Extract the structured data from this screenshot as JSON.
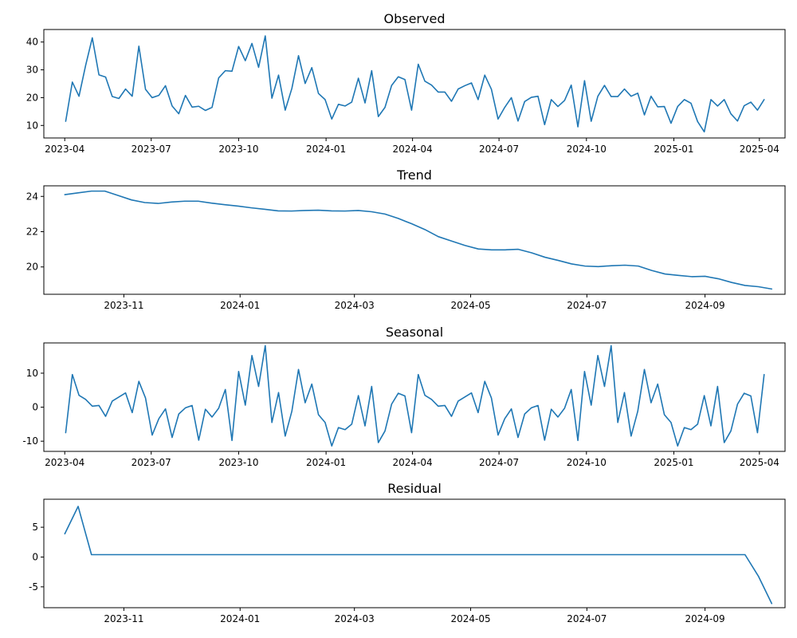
{
  "chart_data": [
    {
      "type": "line",
      "title": "Observed",
      "x_unit": "date",
      "xlim": [
        "2023-03-10",
        "2025-04-28"
      ],
      "ylim": [
        5.5,
        44.5
      ],
      "xticks": [
        {
          "date": "2023-04-01",
          "label": "2023-04"
        },
        {
          "date": "2023-07-01",
          "label": "2023-07"
        },
        {
          "date": "2023-10-01",
          "label": "2023-10"
        },
        {
          "date": "2024-01-01",
          "label": "2024-01"
        },
        {
          "date": "2024-04-01",
          "label": "2024-04"
        },
        {
          "date": "2024-07-01",
          "label": "2024-07"
        },
        {
          "date": "2024-10-01",
          "label": "2024-10"
        },
        {
          "date": "2025-01-01",
          "label": "2025-01"
        },
        {
          "date": "2025-04-01",
          "label": "2025-04"
        }
      ],
      "yticks": [
        10,
        20,
        30,
        40
      ],
      "series": [
        {
          "color": "#1f77b4",
          "x_start": "2023-04-02",
          "x_step_days": 7,
          "values": [
            11.5,
            25.6,
            20.5,
            31.6,
            41.5,
            28.2,
            27.4,
            20.4,
            19.7,
            23.1,
            20.5,
            38.5,
            23.0,
            20.0,
            20.8,
            24.3,
            17.0,
            14.2,
            20.8,
            16.6,
            16.9,
            15.4,
            16.5,
            27.1,
            29.7,
            29.5,
            38.4,
            33.3,
            39.5,
            30.9,
            42.2,
            19.8,
            28.1,
            15.5,
            23.3,
            35.1,
            25.1,
            30.8,
            21.5,
            19.3,
            12.3,
            17.6,
            17.0,
            18.4,
            27.0,
            18.1,
            29.7,
            13.2,
            16.5,
            24.4,
            27.5,
            26.5,
            15.5,
            32.0,
            25.9,
            24.5,
            22.0,
            22.0,
            18.7,
            23.1,
            24.3,
            25.3,
            19.3,
            28.1,
            23.0,
            12.3,
            16.5,
            20.0,
            11.6,
            18.6,
            20.1,
            20.5,
            10.3,
            19.3,
            16.8,
            19.0,
            24.5,
            9.5,
            26.1,
            11.5,
            20.5,
            24.4,
            20.4,
            20.4,
            23.1,
            20.5,
            21.6,
            13.8,
            20.5,
            16.7,
            16.8,
            10.8,
            16.8,
            19.3,
            18.0,
            11.4,
            7.7,
            19.3,
            17.0,
            19.3,
            14.2,
            11.6,
            17.1,
            18.4,
            15.5,
            19.3
          ]
        }
      ]
    },
    {
      "type": "line",
      "title": "Trend",
      "x_unit": "date",
      "xlim": [
        "2023-09-20",
        "2024-10-13"
      ],
      "ylim": [
        18.45,
        24.6
      ],
      "xticks": [
        {
          "date": "2023-11-01",
          "label": "2023-11"
        },
        {
          "date": "2024-01-01",
          "label": "2024-01"
        },
        {
          "date": "2024-03-01",
          "label": "2024-03"
        },
        {
          "date": "2024-05-01",
          "label": "2024-05"
        },
        {
          "date": "2024-07-01",
          "label": "2024-07"
        },
        {
          "date": "2024-09-01",
          "label": "2024-09"
        }
      ],
      "yticks": [
        20,
        22,
        24
      ],
      "series": [
        {
          "color": "#1f77b4",
          "x_start": "2023-10-01",
          "x_step_days": 7,
          "values": [
            24.1,
            24.2,
            24.3,
            24.3,
            24.05,
            23.8,
            23.65,
            23.6,
            23.68,
            23.73,
            23.73,
            23.62,
            23.53,
            23.45,
            23.35,
            23.27,
            23.18,
            23.17,
            23.2,
            23.22,
            23.18,
            23.17,
            23.2,
            23.13,
            23.0,
            22.75,
            22.45,
            22.12,
            21.72,
            21.47,
            21.22,
            21.02,
            20.97,
            20.97,
            21.0,
            20.8,
            20.55,
            20.37,
            20.17,
            20.05,
            20.02,
            20.07,
            20.1,
            20.05,
            19.8,
            19.6,
            19.52,
            19.45,
            19.47,
            19.33,
            19.12,
            18.95,
            18.88,
            18.75
          ]
        }
      ]
    },
    {
      "type": "line",
      "title": "Seasonal",
      "x_unit": "date",
      "xlim": [
        "2023-03-10",
        "2025-04-28"
      ],
      "ylim": [
        -13.0,
        18.9
      ],
      "xticks": [
        {
          "date": "2023-04-01",
          "label": "2023-04"
        },
        {
          "date": "2023-07-01",
          "label": "2023-07"
        },
        {
          "date": "2023-10-01",
          "label": "2023-10"
        },
        {
          "date": "2024-01-01",
          "label": "2024-01"
        },
        {
          "date": "2024-04-01",
          "label": "2024-04"
        },
        {
          "date": "2024-07-01",
          "label": "2024-07"
        },
        {
          "date": "2024-10-01",
          "label": "2024-10"
        },
        {
          "date": "2025-01-01",
          "label": "2025-01"
        },
        {
          "date": "2025-04-01",
          "label": "2025-04"
        }
      ],
      "yticks": [
        -10,
        0,
        10
      ],
      "series": [
        {
          "color": "#1f77b4",
          "x_start": "2023-04-02",
          "x_step_days": 7,
          "values": [
            -7.5,
            9.6,
            3.5,
            2.3,
            0.3,
            0.5,
            -2.7,
            1.8,
            3.0,
            4.2,
            -1.6,
            7.6,
            2.7,
            -8.2,
            -3.4,
            -0.5,
            -8.9,
            -2.0,
            -0.2,
            0.5,
            -9.7,
            -0.6,
            -2.9,
            -0.3,
            5.2,
            -9.8,
            10.5,
            0.6,
            15.2,
            6.1,
            18.1,
            -4.5,
            4.3,
            -8.5,
            -1.2,
            11.1,
            1.3,
            6.8,
            -2.2,
            -4.5,
            -11.4,
            -6.0,
            -6.6,
            -5.0,
            3.4,
            -5.5,
            6.1,
            -10.4,
            -7.0,
            0.9,
            4.1,
            3.3,
            -7.5,
            9.6,
            3.5,
            2.3,
            0.3,
            0.5,
            -2.7,
            1.8,
            3.0,
            4.2,
            -1.6,
            7.6,
            2.7,
            -8.2,
            -3.4,
            -0.5,
            -8.9,
            -2.0,
            -0.2,
            0.5,
            -9.7,
            -0.6,
            -2.9,
            -0.3,
            5.2,
            -9.8,
            10.5,
            0.6,
            15.2,
            6.1,
            18.1,
            -4.5,
            4.3,
            -8.5,
            -1.2,
            11.1,
            1.3,
            6.8,
            -2.2,
            -4.5,
            -11.4,
            -6.0,
            -6.6,
            -5.0,
            3.4,
            -5.5,
            6.1,
            -10.4,
            -7.0,
            0.9,
            4.1,
            3.3,
            -7.5,
            9.6
          ]
        }
      ]
    },
    {
      "type": "line",
      "title": "Residual",
      "x_unit": "date",
      "xlim": [
        "2023-09-20",
        "2024-10-13"
      ],
      "ylim": [
        -8.5,
        9.7
      ],
      "xticks": [
        {
          "date": "2023-11-01",
          "label": "2023-11"
        },
        {
          "date": "2024-01-01",
          "label": "2024-01"
        },
        {
          "date": "2024-03-01",
          "label": "2024-03"
        },
        {
          "date": "2024-05-01",
          "label": "2024-05"
        },
        {
          "date": "2024-07-01",
          "label": "2024-07"
        },
        {
          "date": "2024-09-01",
          "label": "2024-09"
        }
      ],
      "yticks": [
        -5,
        0,
        5
      ],
      "series": [
        {
          "color": "#1f77b4",
          "x_start": "2023-10-01",
          "x_step_days": 7,
          "values": [
            3.9,
            8.5,
            0.4,
            0.4,
            0.4,
            0.4,
            0.4,
            0.4,
            0.4,
            0.4,
            0.4,
            0.4,
            0.4,
            0.4,
            0.4,
            0.4,
            0.4,
            0.4,
            0.4,
            0.4,
            0.4,
            0.4,
            0.4,
            0.4,
            0.4,
            0.4,
            0.4,
            0.4,
            0.4,
            0.4,
            0.4,
            0.4,
            0.4,
            0.4,
            0.4,
            0.4,
            0.4,
            0.4,
            0.4,
            0.4,
            0.4,
            0.4,
            0.4,
            0.4,
            0.4,
            0.4,
            0.4,
            0.4,
            0.4,
            0.4,
            0.4,
            0.4,
            -3.2,
            -7.8
          ]
        }
      ]
    }
  ]
}
